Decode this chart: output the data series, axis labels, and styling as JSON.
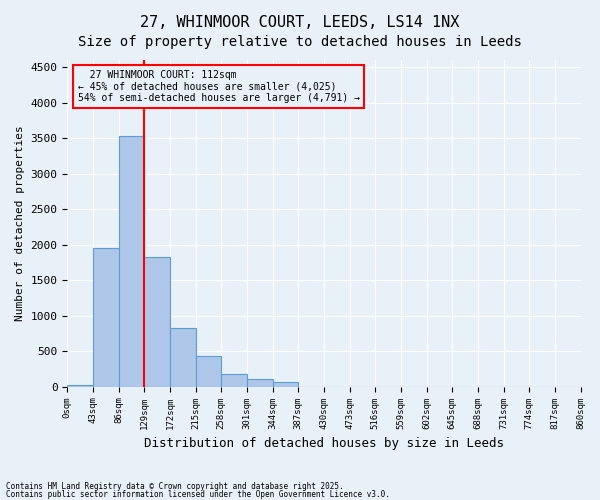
{
  "title_line1": "27, WHINMOOR COURT, LEEDS, LS14 1NX",
  "title_line2": "Size of property relative to detached houses in Leeds",
  "xlabel": "Distribution of detached houses by size in Leeds",
  "ylabel": "Number of detached properties",
  "annotation_line1": "27 WHINMOOR COURT: 112sqm",
  "annotation_line2": "← 45% of detached houses are smaller (4,025)",
  "annotation_line3": "54% of semi-detached houses are larger (4,791) →",
  "footer_line1": "Contains HM Land Registry data © Crown copyright and database right 2025.",
  "footer_line2": "Contains public sector information licensed under the Open Government Licence v3.0.",
  "bin_labels": [
    "0sqm",
    "43sqm",
    "86sqm",
    "129sqm",
    "172sqm",
    "215sqm",
    "258sqm",
    "301sqm",
    "344sqm",
    "387sqm",
    "430sqm",
    "473sqm",
    "516sqm",
    "559sqm",
    "602sqm",
    "645sqm",
    "688sqm",
    "731sqm",
    "774sqm",
    "817sqm",
    "860sqm"
  ],
  "bar_values": [
    30,
    1950,
    3530,
    1820,
    830,
    430,
    175,
    115,
    70,
    0,
    0,
    0,
    0,
    0,
    0,
    0,
    0,
    0,
    0,
    0
  ],
  "bar_color": "#aec6e8",
  "bar_edgecolor": "#5a9fd4",
  "red_line_x": 3,
  "ylim": [
    0,
    4600
  ],
  "yticks": [
    0,
    500,
    1000,
    1500,
    2000,
    2500,
    3000,
    3500,
    4000,
    4500
  ],
  "background_color": "#e8f0f8",
  "grid_color": "#ffffff",
  "title_fontsize": 11,
  "subtitle_fontsize": 10
}
